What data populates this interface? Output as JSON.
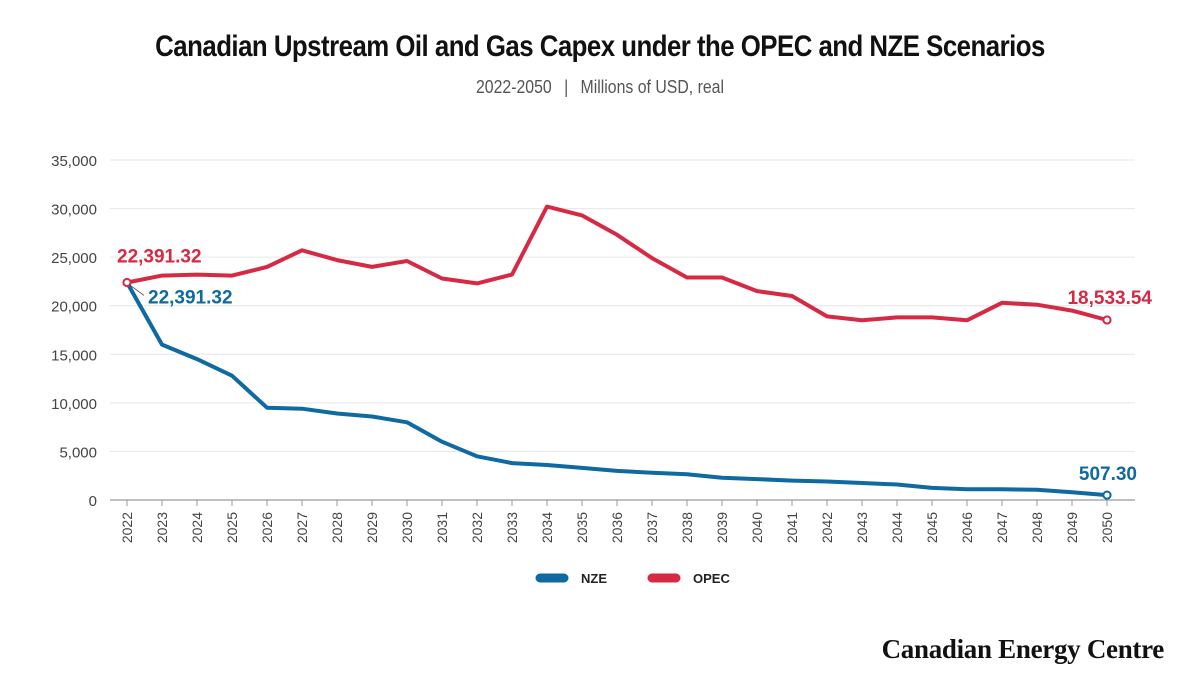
{
  "title": "Canadian Upstream Oil and Gas Capex under the OPEC and NZE Scenarios",
  "subtitle_years": "2022-2050",
  "subtitle_separator": "|",
  "subtitle_units": "Millions of USD, real",
  "logo_text": "Canadian Energy Centre",
  "chart_data": {
    "type": "line",
    "title": "Canadian Upstream Oil and Gas Capex under the OPEC and NZE Scenarios",
    "subtitle": "2022-2050 | Millions of USD, real",
    "x": [
      2022,
      2023,
      2024,
      2025,
      2026,
      2027,
      2028,
      2029,
      2030,
      2031,
      2032,
      2033,
      2034,
      2035,
      2036,
      2037,
      2038,
      2039,
      2040,
      2041,
      2042,
      2043,
      2044,
      2045,
      2046,
      2047,
      2048,
      2049,
      2050
    ],
    "ylim": [
      0,
      35000
    ],
    "yticks": [
      0,
      5000,
      10000,
      15000,
      20000,
      25000,
      30000,
      35000
    ],
    "ytick_labels": [
      "0",
      "5,000",
      "10,000",
      "15,000",
      "20,000",
      "25,000",
      "30,000",
      "35,000"
    ],
    "grid": true,
    "legend_position": "bottom-center",
    "series": [
      {
        "name": "NZE",
        "color": "#0e6aa0",
        "values": [
          22391.32,
          16000,
          14500,
          12800,
          9500,
          9400,
          8900,
          8600,
          8000,
          6000,
          4500,
          3800,
          3600,
          3300,
          3000,
          2800,
          2650,
          2300,
          2150,
          2000,
          1900,
          1750,
          1600,
          1250,
          1100,
          1100,
          1050,
          800,
          507.3
        ],
        "start_label": "22,391.32",
        "end_label": "507.30"
      },
      {
        "name": "OPEC",
        "color": "#d62a44",
        "values": [
          22391.32,
          23100,
          23200,
          23100,
          24000,
          25700,
          24700,
          24000,
          24600,
          22800,
          22300,
          23200,
          30200,
          29300,
          27300,
          24900,
          22900,
          22900,
          21500,
          21000,
          18900,
          18500,
          18800,
          18800,
          18500,
          20300,
          20100,
          19500,
          18533.54
        ],
        "start_label": "22,391.32",
        "end_label": "18,533.54"
      }
    ]
  }
}
